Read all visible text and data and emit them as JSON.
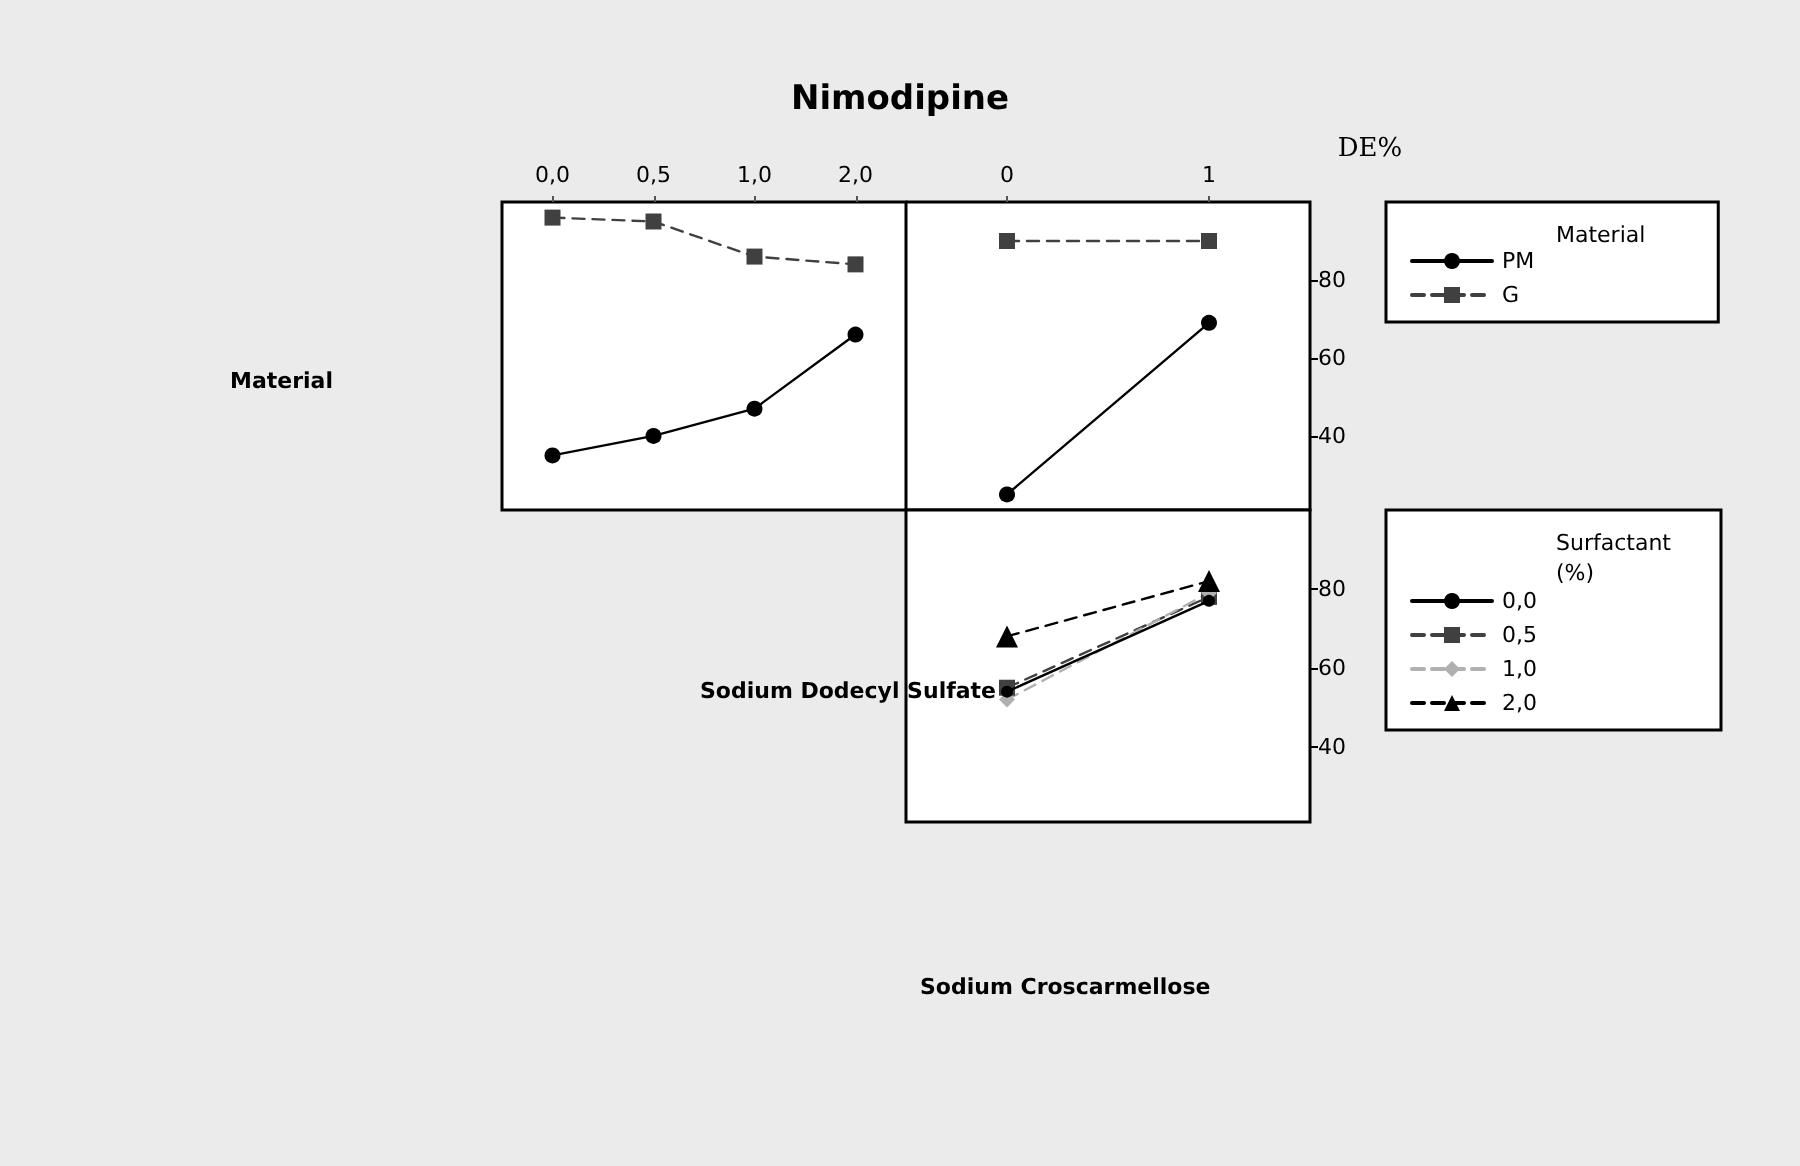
{
  "chart_data": [
    {
      "type": "line",
      "title": "Nimodipine",
      "ylabel": "Material",
      "categories": [
        "0,0",
        "0,5",
        "1,0",
        "2,0"
      ],
      "ylim": [
        21,
        100
      ],
      "tick_labels": "x",
      "series": [
        {
          "color": "#000000",
          "marker": "circle",
          "line_style": "solid",
          "values": [
            35,
            40,
            47,
            66
          ]
        },
        {
          "color": "#404040",
          "marker": "square",
          "line_style": "dashed",
          "values": [
            96,
            95,
            86,
            84
          ]
        }
      ]
    },
    {
      "type": "line",
      "ylabel": "DE%",
      "categories": [
        "0",
        "1"
      ],
      "ylim": [
        21,
        100
      ],
      "yticks": [
        40,
        60,
        80
      ],
      "legend": "right",
      "legend_title": "Material",
      "series": [
        {
          "name": "PM",
          "color": "#000000",
          "marker": "circle",
          "line_style": "solid",
          "values": [
            25,
            69
          ]
        },
        {
          "name": "G",
          "color": "#404040",
          "marker": "square",
          "line_style": "dashed",
          "values": [
            90,
            90
          ]
        }
      ]
    },
    {
      "type": "line",
      "ylabel": "Sodium Dodecyl Sulfate",
      "xlabel": "Sodium Croscarmellose",
      "categories": [
        "0",
        "1"
      ],
      "ylim": [
        21,
        100
      ],
      "yticks": [
        40,
        60,
        80
      ],
      "tick_labels": "y",
      "legend": "right",
      "legend_title": "Surfactant (%)",
      "series": [
        {
          "name": "0,0",
          "color": "#000000",
          "marker": "circle",
          "line_style": "solid",
          "values": [
            54,
            77
          ]
        },
        {
          "name": "0,5",
          "color": "#404040",
          "marker": "square",
          "line_style": "dashed",
          "values": [
            55,
            78
          ]
        },
        {
          "name": "1,0",
          "color": "#b0b0b0",
          "marker": "diamond",
          "line_style": "dashed",
          "values": [
            52,
            79
          ]
        },
        {
          "name": "2,0",
          "color": "#000000",
          "marker": "triangle",
          "line_style": "dashed",
          "values": [
            68,
            82
          ]
        }
      ]
    }
  ]
}
